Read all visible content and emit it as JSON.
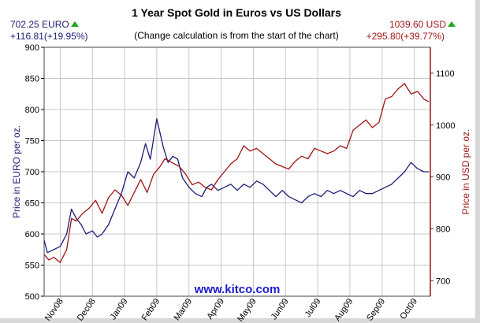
{
  "header": {
    "title": "1 Year Spot Gold in Euros vs US Dollars",
    "subtitle": "(Change calculation is from the start of the chart)",
    "eur_price": "702.25 EURO",
    "eur_change": "+116.81(+19.95%)",
    "usd_price": "1039.60 USD",
    "usd_change": "+295.80(+39.77%)",
    "up_icon": "green-up-triangle-icon"
  },
  "chart_data": {
    "type": "line",
    "title": "1 Year Spot Gold in Euros vs US Dollars",
    "subtitle": "(Change calculation is from the start of the chart)",
    "watermark": "www.kitco.com",
    "x_tick_labels": [
      "Nov08",
      "Dec08",
      "Jan09",
      "Feb09",
      "Mar09",
      "Apr09",
      "May09",
      "Jun09",
      "Jul09",
      "Aug09",
      "Sep09",
      "Oct09"
    ],
    "x_range": [
      0,
      12
    ],
    "y_left": {
      "label": "Price in EURO per oz.",
      "range": [
        500,
        900
      ],
      "ticks": [
        500,
        550,
        600,
        650,
        700,
        750,
        800,
        850,
        900
      ]
    },
    "y_right": {
      "label": "Price in USD per oz.",
      "range": [
        670,
        1150
      ],
      "ticks": [
        700,
        800,
        900,
        1000,
        1100
      ]
    },
    "grid": true,
    "colors": {
      "euro": "#1c1c78",
      "usd": "#a01414",
      "grid": "#c8c8c8",
      "watermark": "#1a1acc"
    },
    "series": [
      {
        "name": "702.25 EURO",
        "axis": "left",
        "x": [
          0.0,
          0.1,
          0.3,
          0.5,
          0.7,
          0.85,
          1.0,
          1.15,
          1.3,
          1.5,
          1.65,
          1.8,
          2.0,
          2.2,
          2.4,
          2.6,
          2.8,
          3.0,
          3.15,
          3.3,
          3.5,
          3.7,
          3.85,
          4.0,
          4.15,
          4.3,
          4.5,
          4.7,
          4.9,
          5.05,
          5.2,
          5.4,
          5.6,
          5.8,
          6.0,
          6.2,
          6.4,
          6.6,
          6.8,
          7.0,
          7.2,
          7.4,
          7.6,
          7.8,
          8.0,
          8.2,
          8.4,
          8.6,
          8.8,
          9.0,
          9.2,
          9.4,
          9.6,
          9.8,
          10.0,
          10.2,
          10.4,
          10.6,
          10.8,
          11.0,
          11.2,
          11.4,
          11.6,
          11.8,
          11.95
        ],
        "values": [
          590,
          570,
          575,
          580,
          600,
          640,
          625,
          615,
          600,
          605,
          595,
          600,
          615,
          640,
          665,
          700,
          690,
          715,
          745,
          720,
          785,
          740,
          715,
          725,
          720,
          690,
          675,
          665,
          660,
          675,
          680,
          670,
          675,
          680,
          670,
          680,
          675,
          685,
          680,
          670,
          660,
          670,
          660,
          655,
          650,
          660,
          665,
          660,
          670,
          665,
          670,
          665,
          660,
          670,
          665,
          665,
          670,
          675,
          680,
          690,
          700,
          715,
          705,
          700,
          700
        ]
      },
      {
        "name": "1039.60 USD",
        "axis": "right",
        "x": [
          0.0,
          0.15,
          0.3,
          0.5,
          0.7,
          0.85,
          1.0,
          1.2,
          1.4,
          1.6,
          1.8,
          2.0,
          2.2,
          2.4,
          2.6,
          2.8,
          3.0,
          3.2,
          3.4,
          3.6,
          3.75,
          3.9,
          4.05,
          4.2,
          4.4,
          4.6,
          4.8,
          5.0,
          5.2,
          5.4,
          5.6,
          5.8,
          6.0,
          6.2,
          6.4,
          6.6,
          6.8,
          7.0,
          7.2,
          7.4,
          7.6,
          7.8,
          8.0,
          8.2,
          8.4,
          8.6,
          8.8,
          9.0,
          9.2,
          9.4,
          9.6,
          9.8,
          10.0,
          10.2,
          10.4,
          10.6,
          10.8,
          11.0,
          11.2,
          11.4,
          11.6,
          11.8,
          11.95
        ],
        "values": [
          750,
          740,
          745,
          735,
          760,
          820,
          815,
          830,
          840,
          855,
          830,
          860,
          875,
          865,
          845,
          870,
          895,
          870,
          905,
          920,
          935,
          930,
          925,
          920,
          905,
          885,
          890,
          880,
          875,
          895,
          910,
          925,
          935,
          960,
          950,
          955,
          945,
          935,
          925,
          920,
          915,
          930,
          940,
          935,
          955,
          950,
          945,
          950,
          960,
          955,
          990,
          1000,
          1010,
          995,
          1005,
          1050,
          1055,
          1070,
          1080,
          1060,
          1065,
          1050,
          1045
        ]
      }
    ]
  }
}
